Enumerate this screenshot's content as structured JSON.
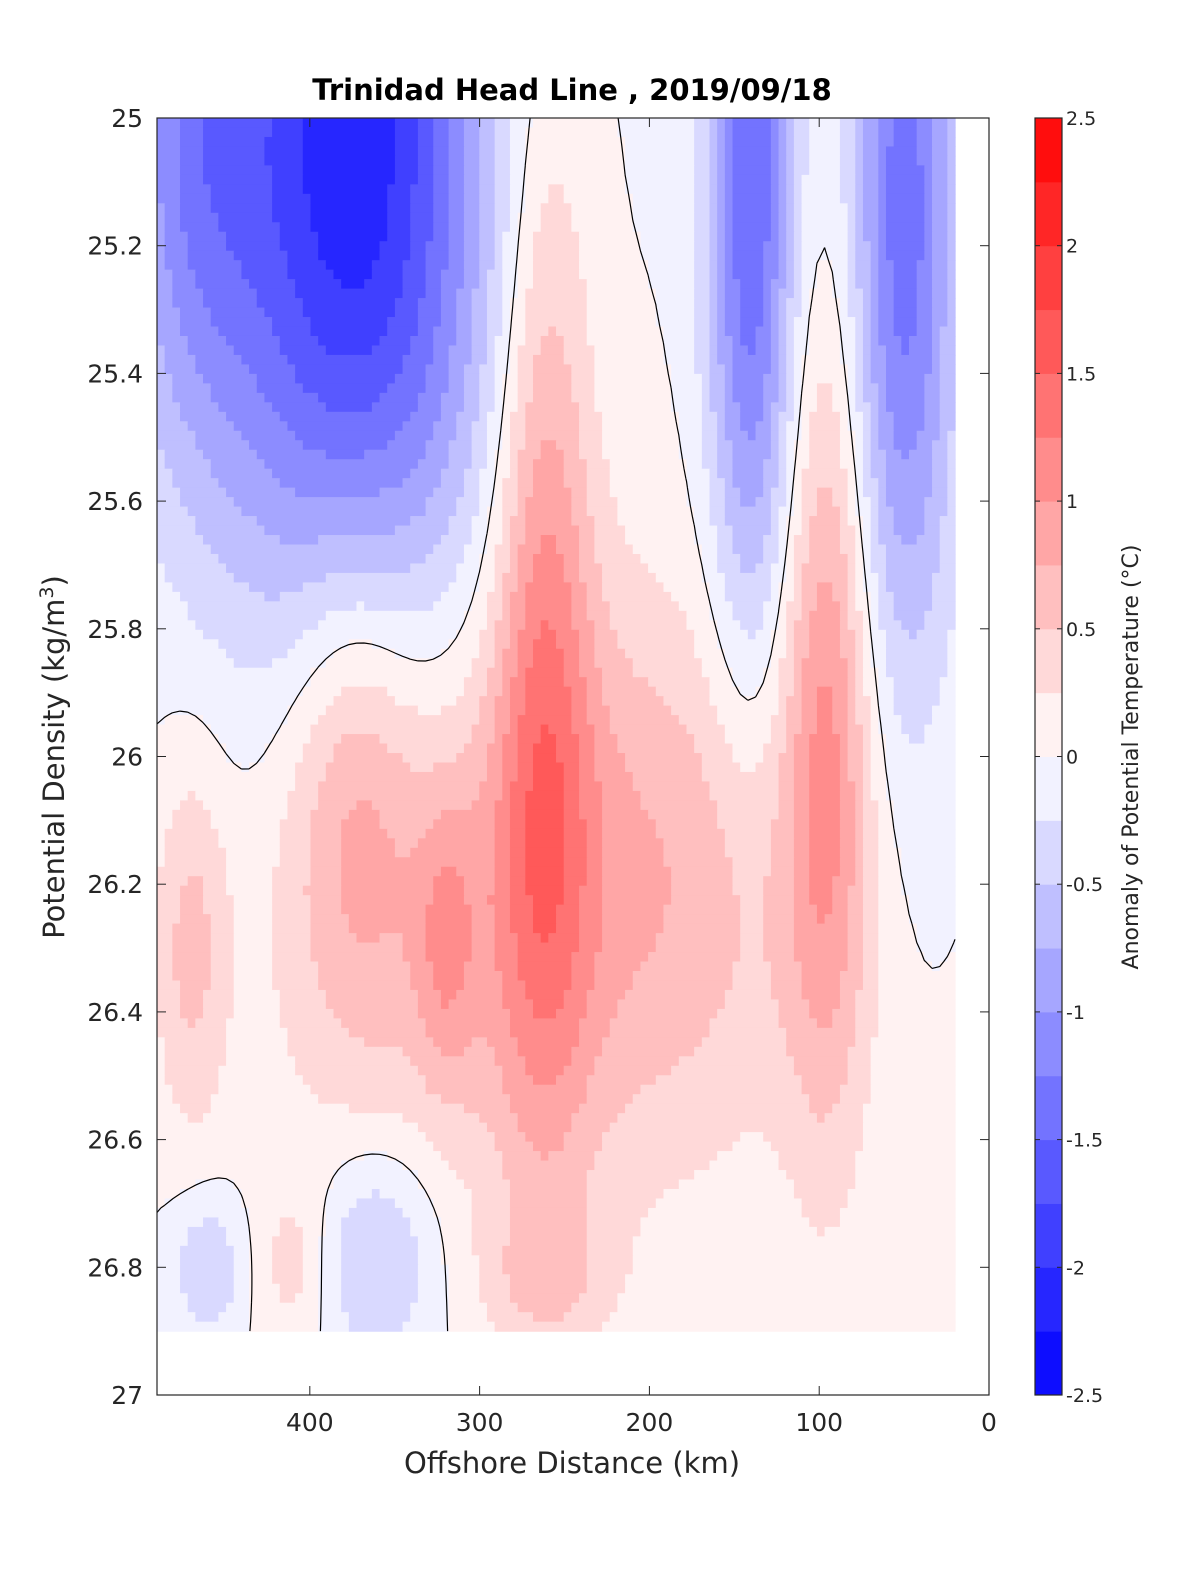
{
  "chart_data": {
    "type": "heatmap",
    "title": "Trinidad Head Line , 2019/09/18",
    "xlabel": "Offshore Distance (km)",
    "ylabel": "Potential Density (kg/m",
    "ylabel_sup": "3",
    "ylabel_end": ")",
    "colorbar_label": "Anomaly of Potential Temperature (°C)",
    "xlim": [
      490,
      0
    ],
    "ylim": [
      25,
      27
    ],
    "y_reversed": true,
    "x_ticks": [
      400,
      300,
      200,
      100,
      0
    ],
    "y_ticks": [
      "25",
      "25.2",
      "25.4",
      "25.6",
      "25.8",
      "26",
      "26.2",
      "26.4",
      "26.6",
      "26.8",
      "27"
    ],
    "y_tick_values": [
      25,
      25.2,
      25.4,
      25.6,
      25.8,
      26,
      26.2,
      26.4,
      26.6,
      26.8,
      27
    ],
    "colorbar_ticks": [
      "2.5",
      "2",
      "1.5",
      "1",
      "0.5",
      "0",
      "-0.5",
      "-1",
      "-1.5",
      "-2",
      "-2.5"
    ],
    "colorbar_tick_values": [
      2.5,
      2,
      1.5,
      1,
      0.5,
      0,
      -0.5,
      -1,
      -1.5,
      -2,
      -2.5
    ],
    "clim": [
      -2.5,
      2.5
    ],
    "level_step": 0.25,
    "zero_contour": true,
    "colormap": {
      "negative": "#0000ff",
      "zero": "#ffffff",
      "positive": "#ff0000"
    },
    "features": [
      {
        "kind": "cold",
        "x": 375,
        "y": 25.05,
        "amplitude": -2.2,
        "sx": 55,
        "sy": 0.55
      },
      {
        "kind": "cold",
        "x": 470,
        "y": 25.05,
        "amplitude": -0.9,
        "sx": 30,
        "sy": 0.35
      },
      {
        "kind": "cold",
        "x": 140,
        "y": 25.1,
        "amplitude": -1.5,
        "sx": 18,
        "sy": 0.5
      },
      {
        "kind": "cold",
        "x": 50,
        "y": 25.15,
        "amplitude": -1.4,
        "sx": 22,
        "sy": 0.5
      },
      {
        "kind": "warm",
        "x": 262,
        "y": 25.8,
        "amplitude": 0.95,
        "sx": 20,
        "sy": 0.6
      },
      {
        "kind": "warm",
        "x": 95,
        "y": 25.95,
        "amplitude": 0.9,
        "sx": 18,
        "sy": 0.45
      },
      {
        "kind": "warm",
        "x": 375,
        "y": 26.0,
        "amplitude": 0.7,
        "sx": 28,
        "sy": 0.3
      },
      {
        "kind": "warm",
        "x": 250,
        "y": 26.2,
        "amplitude": 0.6,
        "sx": 60,
        "sy": 0.35
      },
      {
        "kind": "warm",
        "x": 350,
        "y": 26.2,
        "amplitude": 0.45,
        "sx": 70,
        "sy": 0.3
      },
      {
        "kind": "warm",
        "x": 150,
        "y": 26.2,
        "amplitude": 0.45,
        "sx": 60,
        "sy": 0.3
      },
      {
        "kind": "warm",
        "x": 470,
        "y": 26.3,
        "amplitude": 0.55,
        "sx": 15,
        "sy": 0.2
      },
      {
        "kind": "warm",
        "x": 320,
        "y": 26.3,
        "amplitude": 0.5,
        "sx": 12,
        "sy": 0.15
      },
      {
        "kind": "cold",
        "x": 360,
        "y": 26.78,
        "amplitude": -0.6,
        "sx": 25,
        "sy": 0.12
      },
      {
        "kind": "cold",
        "x": 460,
        "y": 26.8,
        "amplitude": -0.5,
        "sx": 15,
        "sy": 0.08
      },
      {
        "kind": "warm",
        "x": 410,
        "y": 26.8,
        "amplitude": 0.35,
        "sx": 15,
        "sy": 0.1
      },
      {
        "kind": "warm",
        "x": 260,
        "y": 26.82,
        "amplitude": 0.33,
        "sx": 30,
        "sy": 0.07
      }
    ]
  }
}
